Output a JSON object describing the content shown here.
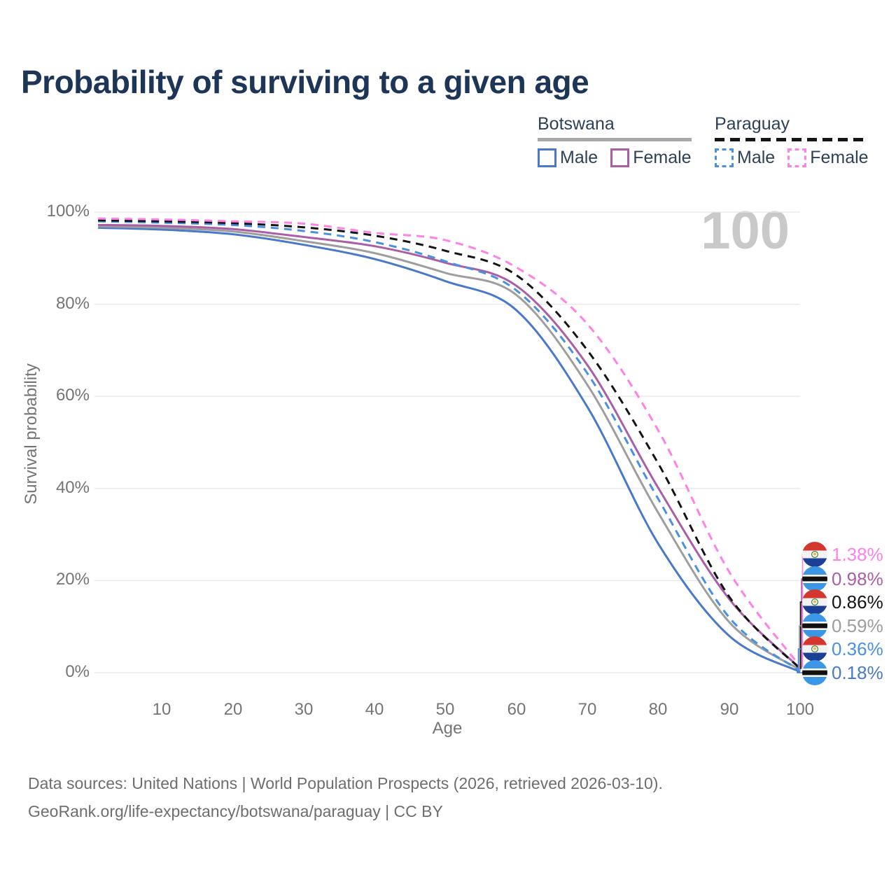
{
  "page": {
    "title": "Probability of surviving to a given age",
    "watermark": "100"
  },
  "legend": {
    "botswana": {
      "country": "Botswana",
      "line_style": "solid",
      "underline_color": "#a8a8a8",
      "male_label": "Male",
      "female_label": "Female",
      "male_color": "#4a79c9",
      "female_color": "#aa5ea6"
    },
    "paraguay": {
      "country": "Paraguay",
      "line_style": "dashed",
      "underline_color": "#141414",
      "male_label": "Male",
      "female_label": "Female",
      "male_color": "#4a90e2",
      "female_color": "#ff80e6"
    }
  },
  "chart_data": {
    "type": "line",
    "title": "Probability of surviving to a given age",
    "xlabel": "Age",
    "ylabel": "Survival probability",
    "xlim": [
      0.5,
      100
    ],
    "ylim": [
      0,
      100
    ],
    "grid": "horizontal-only",
    "legend_position": "top-right",
    "x_tick_labels": [
      "10",
      "20",
      "30",
      "40",
      "50",
      "60",
      "70",
      "80",
      "90",
      "100"
    ],
    "y_tick_labels": [
      "100%",
      "80%",
      "60%",
      "40%",
      "20%",
      "0%"
    ],
    "ages": [
      1,
      10,
      20,
      30,
      40,
      50,
      60,
      70,
      80,
      90,
      100
    ],
    "series": [
      {
        "key": "bw_male",
        "name": "Botswana Male",
        "color": "#4a79c9",
        "dashed": false,
        "values": [
          96.6,
          96.2,
          95.2,
          92.9,
          89.8,
          85.0,
          78.7,
          57.7,
          28.0,
          8.0,
          0.18
        ]
      },
      {
        "key": "bw_total",
        "name": "Botswana",
        "color": "#9e9e9e",
        "dashed": false,
        "values": [
          96.9,
          96.6,
          95.8,
          93.7,
          91.1,
          86.8,
          82.0,
          62.5,
          34.7,
          11.0,
          0.59
        ]
      },
      {
        "key": "bw_female",
        "name": "Botswana Female",
        "color": "#aa5ea6",
        "dashed": false,
        "values": [
          97.2,
          97.0,
          96.3,
          94.6,
          92.6,
          89.0,
          84.0,
          66.8,
          40.1,
          16.0,
          0.98
        ]
      },
      {
        "key": "py_male",
        "name": "Paraguay Male",
        "color": "#4a90e2",
        "dashed": true,
        "values": [
          98.0,
          97.7,
          97.2,
          95.9,
          93.5,
          89.3,
          83.0,
          65.0,
          37.7,
          12.0,
          0.36
        ]
      },
      {
        "key": "py_total",
        "name": "Paraguay",
        "color": "#141414",
        "dashed": true,
        "values": [
          98.2,
          98.0,
          97.6,
          96.7,
          94.9,
          91.6,
          86.3,
          70.0,
          45.4,
          16.5,
          0.86
        ]
      },
      {
        "key": "py_female",
        "name": "Paraguay Female",
        "color": "#ff80e6",
        "dashed": true,
        "values": [
          98.6,
          98.4,
          98.0,
          97.5,
          95.5,
          93.9,
          88.0,
          75.7,
          52.6,
          21.9,
          1.38
        ]
      }
    ]
  },
  "endpoints": [
    {
      "flag": "paraguay-flag",
      "series": "py_female",
      "value": "1.38%",
      "color": "#ff80e6"
    },
    {
      "flag": "botswana-flag",
      "series": "bw_female",
      "value": "0.98%",
      "color": "#aa5ea6"
    },
    {
      "flag": "paraguay-flag",
      "series": "py_total",
      "value": "0.86%",
      "color": "#141414"
    },
    {
      "flag": "botswana-flag",
      "series": "bw_total",
      "value": "0.59%",
      "color": "#9e9e9e"
    },
    {
      "flag": "paraguay-flag",
      "series": "py_male",
      "value": "0.36%",
      "color": "#4a90e2"
    },
    {
      "flag": "botswana-flag",
      "series": "bw_male",
      "value": "0.18%",
      "color": "#4a79c9"
    }
  ],
  "footer": {
    "line1": "Data sources: United Nations | World Population Prospects (2026, retrieved 2026-03-10).",
    "line2": "GeoRank.org/life-expectancy/botswana/paraguay | CC BY"
  }
}
